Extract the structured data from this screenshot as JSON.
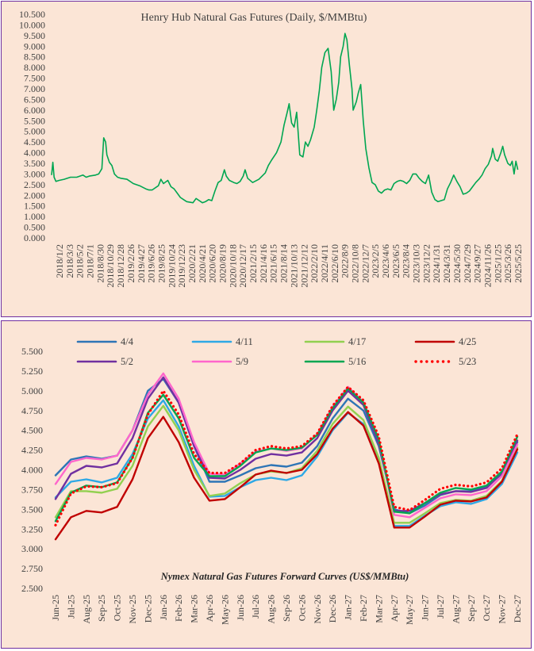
{
  "chart_data": [
    {
      "type": "line",
      "title": "Henry Hub Natural Gas Futures (Daily,  $/MMBtu)",
      "ylim": [
        0,
        10.5
      ],
      "y_ticks": [
        "0.000",
        "0.500",
        "1.000",
        "1.500",
        "2.000",
        "2.500",
        "3.000",
        "3.500",
        "4.000",
        "4.500",
        "5.000",
        "5.500",
        "6.000",
        "6.500",
        "7.000",
        "7.500",
        "8.000",
        "8.500",
        "9.000",
        "9.500",
        "10.000",
        "10.500"
      ],
      "x_ticks": [
        "2018/1/2",
        "2018/3/3",
        "2018/5/2",
        "2018/7/1",
        "2018/8/30",
        "2018/10/29",
        "2018/12/28",
        "2019/2/26",
        "2019/4/27",
        "2019/6/26",
        "2019/8/25",
        "2019/10/24",
        "2019/12/23",
        "2020/2/21",
        "2020/4/21",
        "2020/6/20",
        "2020/8/19",
        "2020/10/18",
        "2020/12/17",
        "2021/2/15",
        "2021/4/16",
        "2021/6/15",
        "2021/8/14",
        "2021/10/13",
        "2021/12/12",
        "2022/2/10",
        "2022/4/11",
        "2022/6/10",
        "2022/8/9",
        "2022/10/8",
        "2022/12/7",
        "2023/2/5",
        "2023/4/6",
        "2023/6/5",
        "2023/8/4",
        "2023/10/3",
        "2023/12/2",
        "2024/1/31",
        "2024/3/31",
        "2024/5/30",
        "2024/7/29",
        "2024/9/27",
        "2024/11/26",
        "2025/1/25",
        "2025/3/26",
        "2025/5/25"
      ],
      "color": "#00a651",
      "series": [
        {
          "points": [
            [
              2018.0,
              2.95
            ],
            [
              2018.02,
              3.55
            ],
            [
              2018.04,
              2.85
            ],
            [
              2018.07,
              2.65
            ],
            [
              2018.12,
              2.7
            ],
            [
              2018.2,
              2.75
            ],
            [
              2018.3,
              2.85
            ],
            [
              2018.4,
              2.85
            ],
            [
              2018.5,
              2.95
            ],
            [
              2018.55,
              2.85
            ],
            [
              2018.6,
              2.9
            ],
            [
              2018.7,
              2.95
            ],
            [
              2018.75,
              3.0
            ],
            [
              2018.8,
              3.25
            ],
            [
              2018.83,
              4.7
            ],
            [
              2018.86,
              4.5
            ],
            [
              2018.88,
              3.9
            ],
            [
              2018.92,
              3.55
            ],
            [
              2018.96,
              3.4
            ],
            [
              2019.0,
              3.0
            ],
            [
              2019.05,
              2.85
            ],
            [
              2019.1,
              2.8
            ],
            [
              2019.2,
              2.75
            ],
            [
              2019.3,
              2.55
            ],
            [
              2019.4,
              2.45
            ],
            [
              2019.5,
              2.3
            ],
            [
              2019.55,
              2.25
            ],
            [
              2019.6,
              2.25
            ],
            [
              2019.7,
              2.45
            ],
            [
              2019.74,
              2.75
            ],
            [
              2019.78,
              2.55
            ],
            [
              2019.85,
              2.7
            ],
            [
              2019.9,
              2.4
            ],
            [
              2019.95,
              2.3
            ],
            [
              2020.0,
              2.1
            ],
            [
              2020.05,
              1.9
            ],
            [
              2020.1,
              1.8
            ],
            [
              2020.15,
              1.7
            ],
            [
              2020.25,
              1.65
            ],
            [
              2020.3,
              1.85
            ],
            [
              2020.35,
              1.75
            ],
            [
              2020.4,
              1.65
            ],
            [
              2020.45,
              1.7
            ],
            [
              2020.5,
              1.8
            ],
            [
              2020.55,
              1.75
            ],
            [
              2020.6,
              2.2
            ],
            [
              2020.65,
              2.6
            ],
            [
              2020.7,
              2.7
            ],
            [
              2020.75,
              3.2
            ],
            [
              2020.78,
              2.9
            ],
            [
              2020.83,
              2.7
            ],
            [
              2020.9,
              2.6
            ],
            [
              2020.95,
              2.55
            ],
            [
              2021.0,
              2.65
            ],
            [
              2021.05,
              2.9
            ],
            [
              2021.08,
              3.2
            ],
            [
              2021.12,
              2.8
            ],
            [
              2021.2,
              2.6
            ],
            [
              2021.3,
              2.75
            ],
            [
              2021.4,
              3.05
            ],
            [
              2021.45,
              3.4
            ],
            [
              2021.5,
              3.65
            ],
            [
              2021.58,
              4.0
            ],
            [
              2021.65,
              4.5
            ],
            [
              2021.7,
              5.3
            ],
            [
              2021.75,
              5.9
            ],
            [
              2021.78,
              6.3
            ],
            [
              2021.82,
              5.4
            ],
            [
              2021.86,
              5.2
            ],
            [
              2021.9,
              5.9
            ],
            [
              2021.95,
              3.9
            ],
            [
              2022.0,
              3.8
            ],
            [
              2022.04,
              4.5
            ],
            [
              2022.08,
              4.3
            ],
            [
              2022.12,
              4.6
            ],
            [
              2022.18,
              5.2
            ],
            [
              2022.22,
              6.0
            ],
            [
              2022.26,
              6.9
            ],
            [
              2022.3,
              8.0
            ],
            [
              2022.35,
              8.7
            ],
            [
              2022.4,
              8.9
            ],
            [
              2022.45,
              7.8
            ],
            [
              2022.49,
              6.0
            ],
            [
              2022.53,
              6.5
            ],
            [
              2022.57,
              7.3
            ],
            [
              2022.6,
              8.5
            ],
            [
              2022.64,
              9.0
            ],
            [
              2022.67,
              9.6
            ],
            [
              2022.7,
              9.3
            ],
            [
              2022.74,
              8.1
            ],
            [
              2022.78,
              7.0
            ],
            [
              2022.8,
              6.0
            ],
            [
              2022.85,
              6.4
            ],
            [
              2022.88,
              6.8
            ],
            [
              2022.92,
              7.2
            ],
            [
              2022.96,
              5.5
            ],
            [
              2023.0,
              4.2
            ],
            [
              2023.05,
              3.3
            ],
            [
              2023.1,
              2.6
            ],
            [
              2023.15,
              2.5
            ],
            [
              2023.2,
              2.2
            ],
            [
              2023.25,
              2.1
            ],
            [
              2023.3,
              2.25
            ],
            [
              2023.35,
              2.3
            ],
            [
              2023.4,
              2.25
            ],
            [
              2023.45,
              2.55
            ],
            [
              2023.5,
              2.65
            ],
            [
              2023.55,
              2.7
            ],
            [
              2023.6,
              2.65
            ],
            [
              2023.65,
              2.55
            ],
            [
              2023.7,
              2.7
            ],
            [
              2023.75,
              3.0
            ],
            [
              2023.8,
              3.0
            ],
            [
              2023.85,
              2.8
            ],
            [
              2023.9,
              2.65
            ],
            [
              2023.95,
              2.55
            ],
            [
              2024.0,
              2.95
            ],
            [
              2024.05,
              2.15
            ],
            [
              2024.1,
              1.8
            ],
            [
              2024.15,
              1.7
            ],
            [
              2024.2,
              1.75
            ],
            [
              2024.25,
              1.8
            ],
            [
              2024.3,
              2.3
            ],
            [
              2024.35,
              2.6
            ],
            [
              2024.4,
              2.95
            ],
            [
              2024.45,
              2.65
            ],
            [
              2024.5,
              2.4
            ],
            [
              2024.55,
              2.05
            ],
            [
              2024.6,
              2.1
            ],
            [
              2024.65,
              2.2
            ],
            [
              2024.7,
              2.4
            ],
            [
              2024.75,
              2.6
            ],
            [
              2024.8,
              2.75
            ],
            [
              2024.85,
              2.95
            ],
            [
              2024.9,
              3.25
            ],
            [
              2024.95,
              3.45
            ],
            [
              2025.0,
              3.85
            ],
            [
              2025.02,
              4.2
            ],
            [
              2025.06,
              3.7
            ],
            [
              2025.1,
              3.6
            ],
            [
              2025.15,
              4.0
            ],
            [
              2025.18,
              4.3
            ],
            [
              2025.21,
              3.9
            ],
            [
              2025.26,
              3.5
            ],
            [
              2025.3,
              3.4
            ],
            [
              2025.33,
              3.6
            ],
            [
              2025.36,
              3.0
            ],
            [
              2025.39,
              3.6
            ],
            [
              2025.42,
              3.2
            ]
          ]
        }
      ]
    },
    {
      "type": "line",
      "title": "Nymex  Natural  Gas Futures Forward  Curves (US$/MMBtu)",
      "ylim": [
        2.5,
        5.5
      ],
      "y_ticks": [
        "2.500",
        "2.750",
        "3.000",
        "3.250",
        "3.500",
        "3.750",
        "4.000",
        "4.250",
        "4.500",
        "4.750",
        "5.000",
        "5.250",
        "5.500"
      ],
      "categories": [
        "Jun-25",
        "Jul-25",
        "Aug-25",
        "Sep-25",
        "Oct-25",
        "Nov-25",
        "Dec-25",
        "Jan-26",
        "Feb-26",
        "Mar-26",
        "Apr-26",
        "May-26",
        "Jun-26",
        "Jul-26",
        "Aug-26",
        "Sep-26",
        "Oct-26",
        "Nov-26",
        "Dec-26",
        "Jan-27",
        "Feb-27",
        "Mar-27",
        "Apr-27",
        "May-27",
        "Jun-27",
        "Jul-27",
        "Aug-27",
        "Sep-27",
        "Oct-27",
        "Nov-27",
        "Dec-27"
      ],
      "series": [
        {
          "name": "4/4",
          "color": "#2e75b6",
          "dotted": false,
          "values": [
            3.93,
            4.13,
            4.17,
            4.14,
            4.18,
            4.5,
            5.0,
            5.15,
            4.85,
            4.3,
            3.85,
            3.85,
            3.93,
            4.02,
            4.06,
            4.04,
            4.09,
            4.3,
            4.65,
            4.9,
            4.75,
            4.3,
            3.5,
            3.45,
            3.55,
            3.68,
            3.73,
            3.73,
            3.78,
            3.95,
            4.35
          ]
        },
        {
          "name": "4/11",
          "color": "#2ea8e5",
          "dotted": false,
          "values": [
            3.65,
            3.85,
            3.88,
            3.84,
            3.9,
            4.2,
            4.65,
            4.88,
            4.55,
            4.05,
            3.66,
            3.67,
            3.78,
            3.87,
            3.9,
            3.87,
            3.93,
            4.17,
            4.5,
            4.72,
            4.58,
            4.1,
            3.29,
            3.29,
            3.42,
            3.54,
            3.59,
            3.57,
            3.63,
            3.82,
            4.22
          ]
        },
        {
          "name": "4/17",
          "color": "#92d050",
          "dotted": false,
          "values": [
            3.4,
            3.73,
            3.73,
            3.71,
            3.76,
            4.05,
            4.55,
            4.81,
            4.5,
            4.0,
            3.67,
            3.7,
            3.83,
            3.94,
            3.98,
            3.96,
            4.02,
            4.24,
            4.58,
            4.8,
            4.63,
            4.15,
            3.33,
            3.33,
            3.45,
            3.58,
            3.62,
            3.61,
            3.67,
            3.86,
            4.28
          ]
        },
        {
          "name": "4/25",
          "color": "#c00000",
          "dotted": false,
          "values": [
            3.12,
            3.4,
            3.48,
            3.46,
            3.53,
            3.88,
            4.4,
            4.67,
            4.35,
            3.9,
            3.61,
            3.63,
            3.78,
            3.94,
            3.99,
            3.96,
            4.0,
            4.2,
            4.52,
            4.73,
            4.56,
            4.08,
            3.27,
            3.27,
            3.41,
            3.56,
            3.61,
            3.6,
            3.65,
            3.85,
            4.26
          ]
        },
        {
          "name": "5/2",
          "color": "#7030a0",
          "dotted": false,
          "values": [
            3.63,
            3.95,
            4.05,
            4.03,
            4.08,
            4.4,
            4.9,
            5.17,
            4.85,
            4.3,
            3.9,
            3.89,
            4.0,
            4.14,
            4.2,
            4.18,
            4.22,
            4.4,
            4.75,
            5.0,
            4.82,
            4.33,
            3.48,
            3.48,
            3.58,
            3.69,
            3.73,
            3.72,
            3.77,
            3.96,
            4.37
          ]
        },
        {
          "name": "5/9",
          "color": "#ff66cc",
          "dotted": false,
          "values": [
            3.82,
            4.1,
            4.15,
            4.13,
            4.18,
            4.5,
            4.95,
            5.22,
            4.9,
            4.35,
            3.95,
            3.94,
            4.08,
            4.23,
            4.27,
            4.24,
            4.27,
            4.45,
            4.8,
            5.05,
            4.86,
            4.38,
            3.43,
            3.4,
            3.52,
            3.64,
            3.69,
            3.68,
            3.73,
            3.92,
            4.32
          ]
        },
        {
          "name": "5/16",
          "color": "#00a651",
          "dotted": false,
          "values": [
            3.35,
            3.71,
            3.8,
            3.78,
            3.84,
            4.15,
            4.72,
            4.95,
            4.65,
            4.15,
            3.92,
            3.92,
            4.05,
            4.22,
            4.27,
            4.25,
            4.28,
            4.44,
            4.78,
            5.03,
            4.85,
            4.38,
            3.47,
            3.45,
            3.58,
            3.71,
            3.77,
            3.75,
            3.8,
            3.98,
            4.42
          ]
        },
        {
          "name": "5/23",
          "color": "#ff0000",
          "dotted": true,
          "values": [
            3.3,
            3.7,
            3.79,
            3.78,
            3.83,
            4.15,
            4.7,
            5.0,
            4.7,
            4.2,
            3.96,
            3.96,
            4.08,
            4.25,
            4.3,
            4.27,
            4.3,
            4.46,
            4.81,
            5.05,
            4.88,
            4.42,
            3.53,
            3.49,
            3.62,
            3.76,
            3.81,
            3.79,
            3.84,
            4.02,
            4.45
          ]
        }
      ]
    }
  ]
}
